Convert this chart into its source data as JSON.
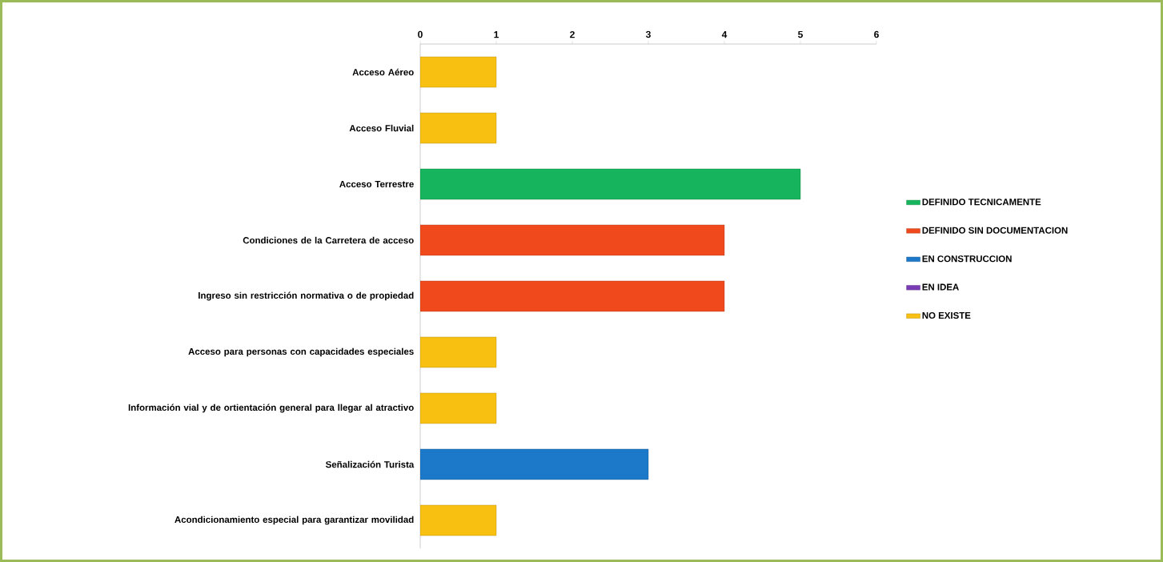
{
  "chart_data": {
    "type": "bar",
    "orientation": "horizontal",
    "stacked": true,
    "categories": [
      "Acceso Aéreo",
      "Acceso Fluvial",
      "Acceso Terrestre",
      "Condiciones de la Carretera de acceso",
      "Ingreso sin restricción normativa o de propiedad",
      "Acceso para personas con capacidades especiales",
      "Información vial y de ortientación general para llegar al atractivo",
      "Señalización Turista",
      "Acondicionamiento especial para garantizar movilidad"
    ],
    "series": [
      {
        "name": "DEFINIDO TECNICAMENTE",
        "color": "#16b45c",
        "values": [
          null,
          null,
          5,
          null,
          null,
          null,
          null,
          null,
          null
        ]
      },
      {
        "name": "DEFINIDO SIN DOCUMENTACION",
        "color": "#f04a1c",
        "values": [
          null,
          null,
          null,
          4,
          4,
          null,
          null,
          null,
          null
        ]
      },
      {
        "name": "EN CONSTRUCCION",
        "color": "#1c78c8",
        "values": [
          null,
          null,
          null,
          null,
          null,
          null,
          null,
          3,
          null
        ]
      },
      {
        "name": "EN IDEA",
        "color": "#7a3cb4",
        "values": [
          null,
          null,
          null,
          null,
          null,
          null,
          null,
          null,
          null
        ]
      },
      {
        "name": "NO EXISTE",
        "color": "#f8c010",
        "values": [
          1,
          1,
          null,
          null,
          null,
          1,
          1,
          null,
          1
        ]
      }
    ],
    "xlim": [
      0,
      6
    ],
    "xticks": [
      0,
      1,
      2,
      3,
      4,
      5,
      6
    ],
    "legend": "right"
  }
}
